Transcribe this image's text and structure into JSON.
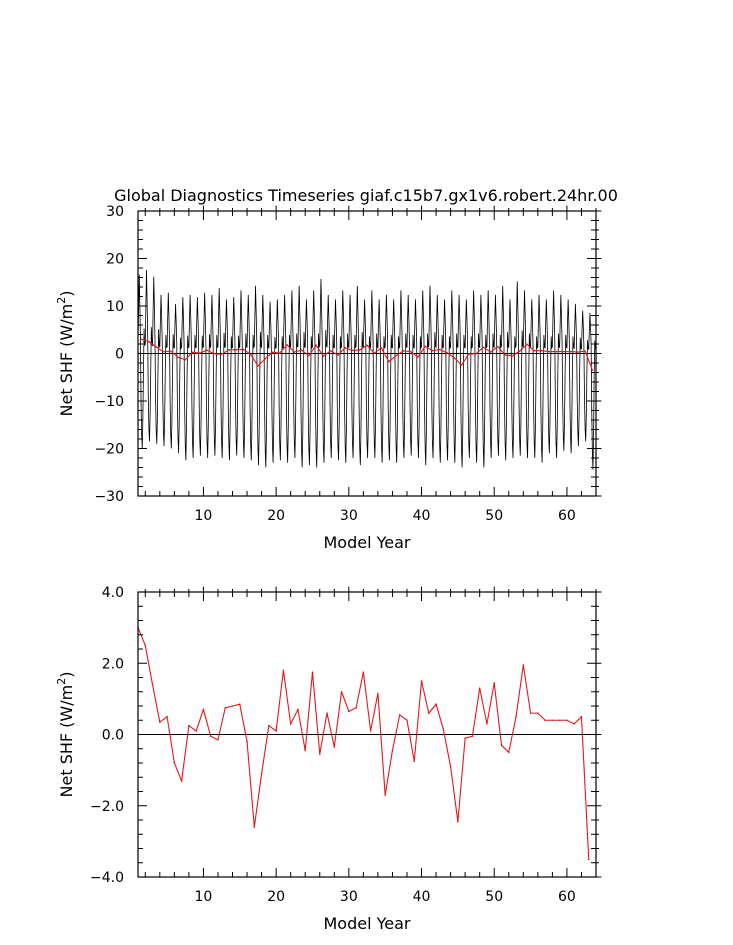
{
  "title": "Global Diagnostics Timeseries giaf.c15b7.gx1v6.robert.24hr.00",
  "colors": {
    "monthly": "#000000",
    "annual": "#e0191c",
    "zero_line": "#000000",
    "axes": "#000000"
  },
  "chart_data": [
    {
      "type": "line",
      "title": "Global Diagnostics Timeseries giaf.c15b7.gx1v6.robert.24hr.00",
      "xlabel": "Model Year",
      "ylabel_main": "Net SHF (W/m",
      "ylabel_sup": "2",
      "ylabel_close": ")",
      "xlim": [
        1,
        64
      ],
      "ylim": [
        -30,
        30
      ],
      "x_ticks": [
        10,
        20,
        30,
        40,
        50,
        60
      ],
      "x_tick_labels": [
        "10",
        "20",
        "30",
        "40",
        "50",
        "60"
      ],
      "y_ticks": [
        -30,
        -20,
        -10,
        0,
        10,
        20,
        30
      ],
      "y_tick_labels": [
        "−30",
        "−20",
        "−10",
        "0",
        "10",
        "20",
        "30"
      ],
      "reference_line": 0,
      "monthly_series": {
        "year_start": 1,
        "maxima": [
          17.5,
          18.5,
          17.0,
          13.0,
          13.5,
          11.0,
          12.5,
          13.0,
          12.5,
          13.5,
          13.0,
          14.5,
          12.0,
          12.5,
          14.0,
          13.0,
          15.0,
          13.0,
          11.5,
          12.0,
          13.0,
          14.0,
          15.0,
          12.0,
          14.0,
          16.5,
          13.0,
          12.0,
          14.0,
          13.0,
          15.0,
          12.0,
          14.0,
          12.0,
          13.0,
          12.0,
          14.0,
          13.0,
          12.0,
          14.0,
          15.0,
          13.0,
          12.0,
          14.0,
          13.0,
          12.0,
          14.0,
          13.0,
          14.0,
          13.0,
          15.0,
          12.0,
          16.0,
          14.0,
          12.0,
          13.0,
          12.0,
          14.0,
          13.0,
          12.0,
          11.0,
          9.5,
          9.0
        ],
        "minima": [
          -20.0,
          -18.5,
          -19.0,
          -19.5,
          -20.0,
          -21.0,
          -22.5,
          -22.0,
          -21.5,
          -22.0,
          -21.5,
          -22.0,
          -22.5,
          -21.5,
          -22.0,
          -22.5,
          -23.5,
          -24.0,
          -23.0,
          -22.5,
          -23.0,
          -22.0,
          -24.0,
          -23.5,
          -24.0,
          -23.0,
          -22.0,
          -22.5,
          -23.0,
          -22.0,
          -23.5,
          -22.0,
          -22.0,
          -23.0,
          -22.5,
          -23.0,
          -22.0,
          -21.5,
          -22.0,
          -23.5,
          -22.0,
          -23.0,
          -22.5,
          -23.0,
          -24.0,
          -22.0,
          -23.0,
          -24.0,
          -22.0,
          -21.5,
          -22.5,
          -22.0,
          -21.5,
          -22.0,
          -22.0,
          -23.0,
          -21.0,
          -22.0,
          -20.5,
          -21.0,
          -19.5,
          -18.5,
          -24.5
        ]
      },
      "series": [
        {
          "values": [
            3.0,
            2.5,
            1.4,
            0.35,
            0.5,
            -0.8,
            -1.3,
            0.25,
            0.1,
            0.7,
            -0.05,
            -0.15,
            0.75,
            0.8,
            0.85,
            -0.2,
            -2.6,
            -1.1,
            0.25,
            0.1,
            1.8,
            0.3,
            0.7,
            -0.45,
            1.75,
            -0.55,
            0.6,
            -0.35,
            1.2,
            0.65,
            0.75,
            1.75,
            0.1,
            1.15,
            -1.7,
            -0.45,
            0.55,
            0.4,
            -0.75,
            1.5,
            0.6,
            0.85,
            0.15,
            -0.9,
            -2.45,
            -0.1,
            -0.05,
            1.3,
            0.3,
            1.45,
            -0.3,
            -0.5,
            0.5,
            1.95,
            0.6,
            0.6,
            0.4,
            0.4,
            0.4,
            0.4,
            0.3,
            0.5,
            -3.5
          ],
          "x_start": 1.5
        }
      ]
    },
    {
      "type": "line",
      "xlabel": "Model Year",
      "ylabel_main": "Net SHF (W/m",
      "ylabel_sup": "2",
      "ylabel_close": ")",
      "xlim": [
        1,
        64
      ],
      "ylim": [
        -4,
        4
      ],
      "x_ticks": [
        10,
        20,
        30,
        40,
        50,
        60
      ],
      "x_tick_labels": [
        "10",
        "20",
        "30",
        "40",
        "50",
        "60"
      ],
      "y_ticks": [
        -4,
        -2,
        0,
        2,
        4
      ],
      "y_tick_labels": [
        "−4.0",
        "−2.0",
        "0.0",
        "2.0",
        "4.0"
      ],
      "reference_line": 0,
      "series": [
        {
          "values": [
            3.0,
            2.5,
            1.4,
            0.35,
            0.5,
            -0.8,
            -1.3,
            0.25,
            0.1,
            0.7,
            -0.05,
            -0.15,
            0.75,
            0.8,
            0.85,
            -0.2,
            -2.6,
            -1.1,
            0.25,
            0.1,
            1.8,
            0.3,
            0.7,
            -0.45,
            1.75,
            -0.55,
            0.6,
            -0.35,
            1.2,
            0.65,
            0.75,
            1.75,
            0.1,
            1.15,
            -1.7,
            -0.45,
            0.55,
            0.4,
            -0.75,
            1.5,
            0.6,
            0.85,
            0.15,
            -0.9,
            -2.45,
            -0.1,
            -0.05,
            1.3,
            0.3,
            1.45,
            -0.3,
            -0.5,
            0.5,
            1.95,
            0.6,
            0.6,
            0.4,
            0.4,
            0.4,
            0.4,
            0.3,
            0.5,
            -3.5
          ],
          "x_start": 1
        }
      ]
    }
  ]
}
